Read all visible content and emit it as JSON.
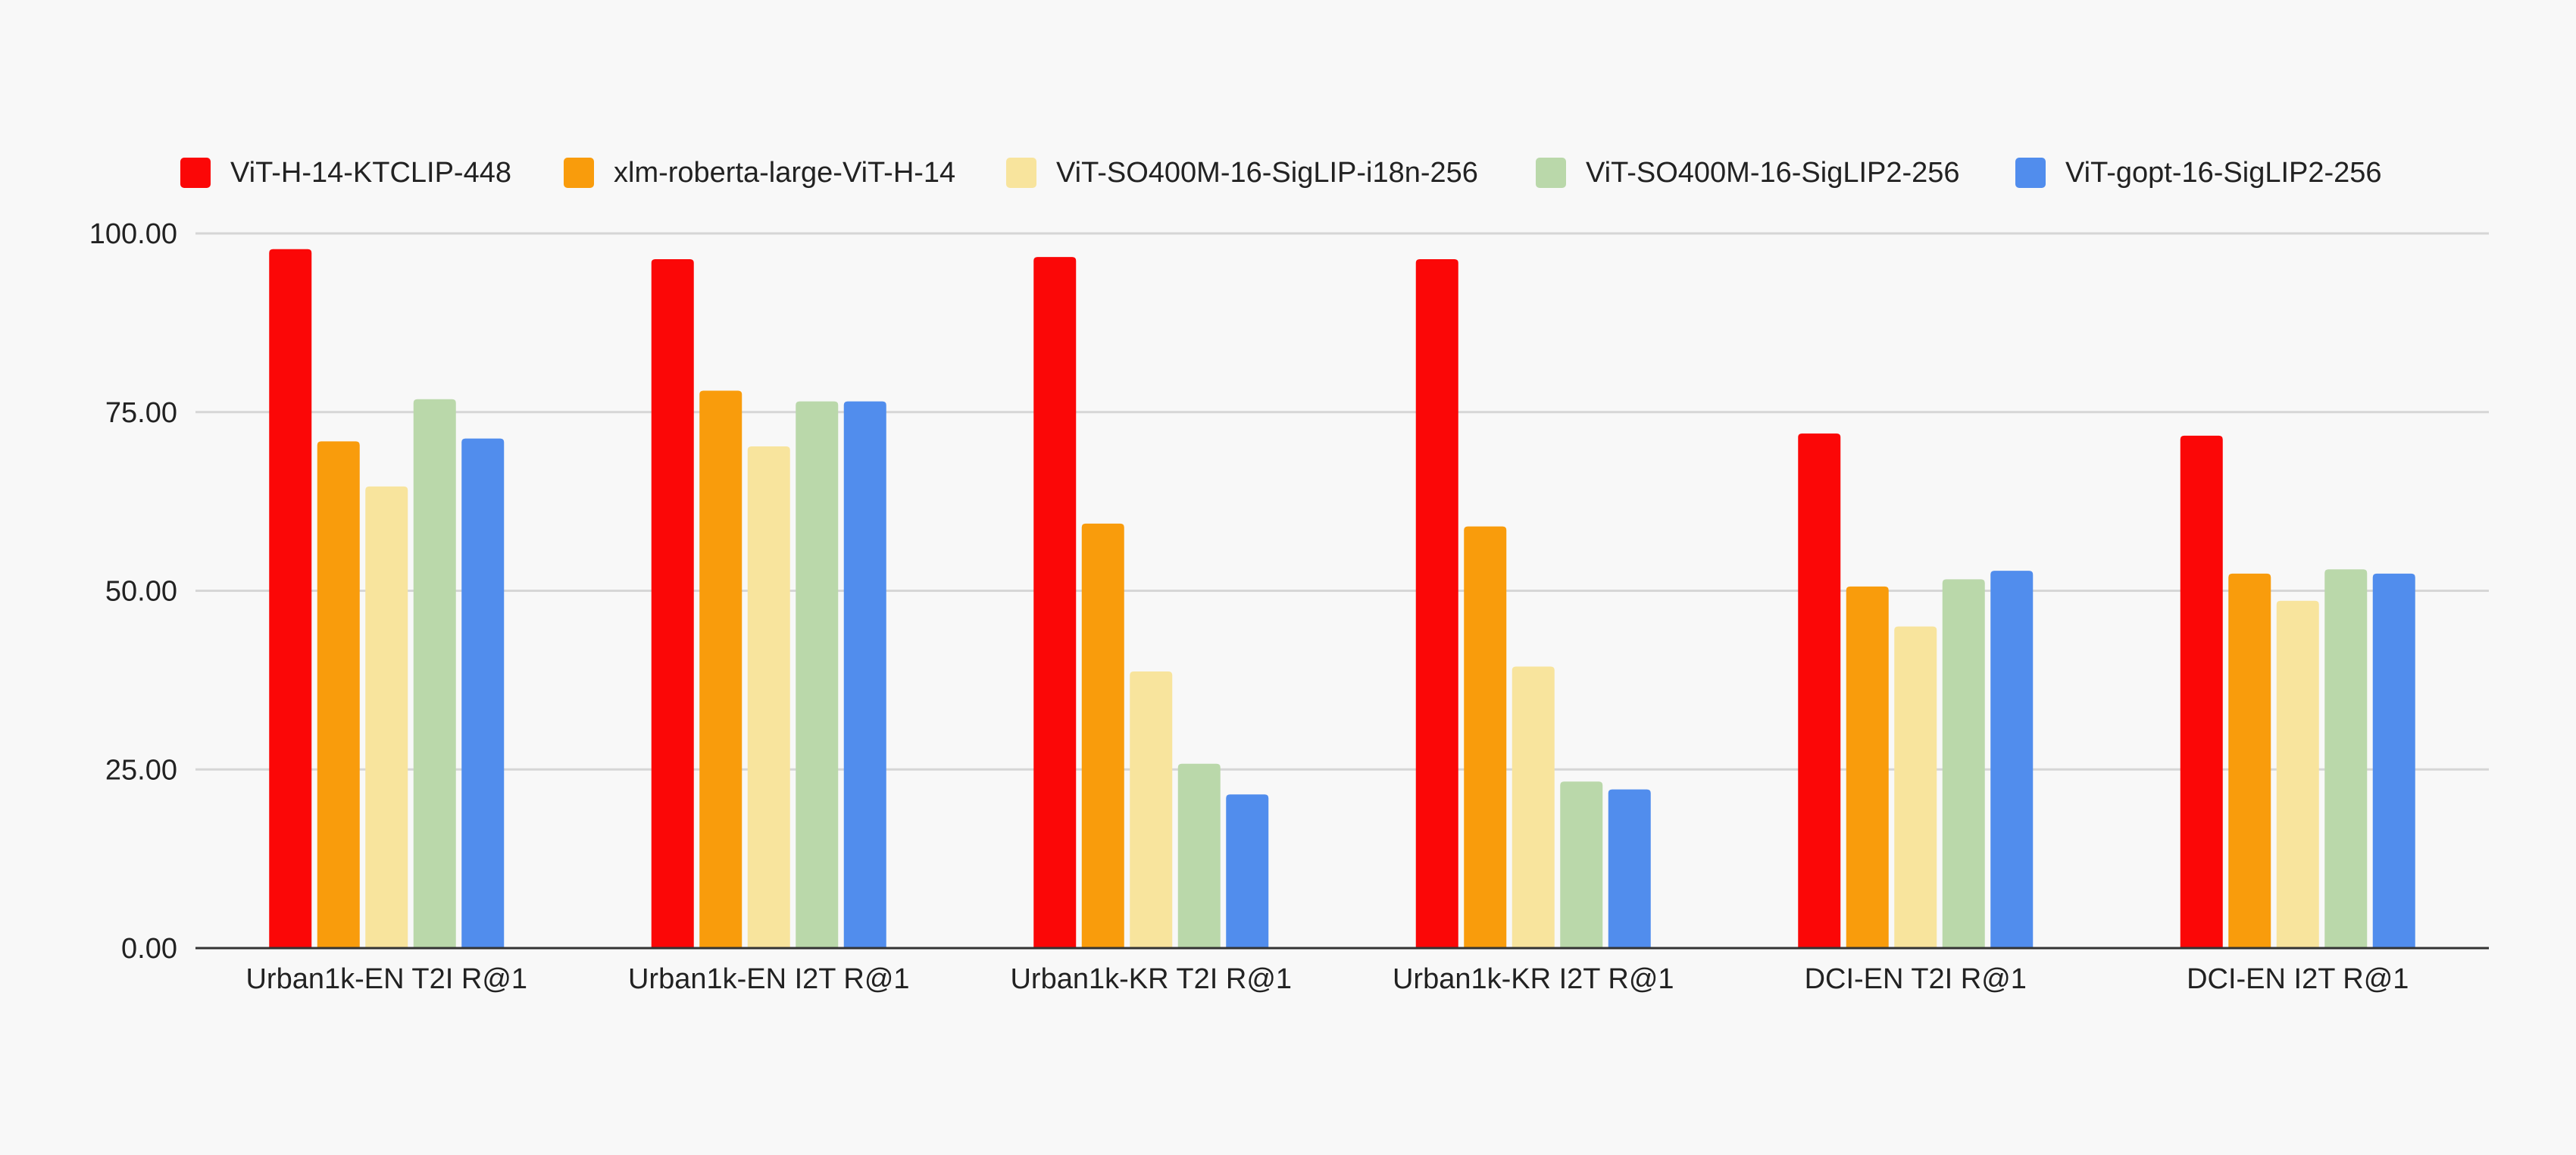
{
  "chart_data": {
    "type": "bar",
    "title": "",
    "xlabel": "",
    "ylabel": "",
    "ylim": [
      0,
      100
    ],
    "yticks": [
      "0.00",
      "25.00",
      "50.00",
      "75.00",
      "100.00"
    ],
    "grid": true,
    "legend_position": "top",
    "categories": [
      "Urban1k-EN T2I R@1",
      "Urban1k-EN I2T R@1",
      "Urban1k-KR T2I R@1",
      "Urban1k-KR I2T R@1",
      "DCI-EN T2I R@1",
      "DCI-EN I2T R@1"
    ],
    "series": [
      {
        "name": "ViT-H-14-KTCLIP-448",
        "color": "#fb0707",
        "values": [
          97.8,
          96.4,
          96.7,
          96.4,
          72.0,
          71.7
        ]
      },
      {
        "name": "xlm-roberta-large-ViT-H-14",
        "color": "#f99c0c",
        "values": [
          70.9,
          78.0,
          59.4,
          59.0,
          50.6,
          52.4
        ]
      },
      {
        "name": "ViT-SO400M-16-SigLIP-i18n-256",
        "color": "#f8e49d",
        "values": [
          64.6,
          70.2,
          38.7,
          39.4,
          45.0,
          48.6
        ]
      },
      {
        "name": "ViT-SO400M-16-SigLIP2-256",
        "color": "#bad8aa",
        "values": [
          76.8,
          76.5,
          25.8,
          23.3,
          51.6,
          53.0
        ]
      },
      {
        "name": "ViT-gopt-16-SigLIP2-256",
        "color": "#518ded",
        "values": [
          71.3,
          76.5,
          21.5,
          22.2,
          52.8,
          52.4
        ]
      }
    ]
  }
}
